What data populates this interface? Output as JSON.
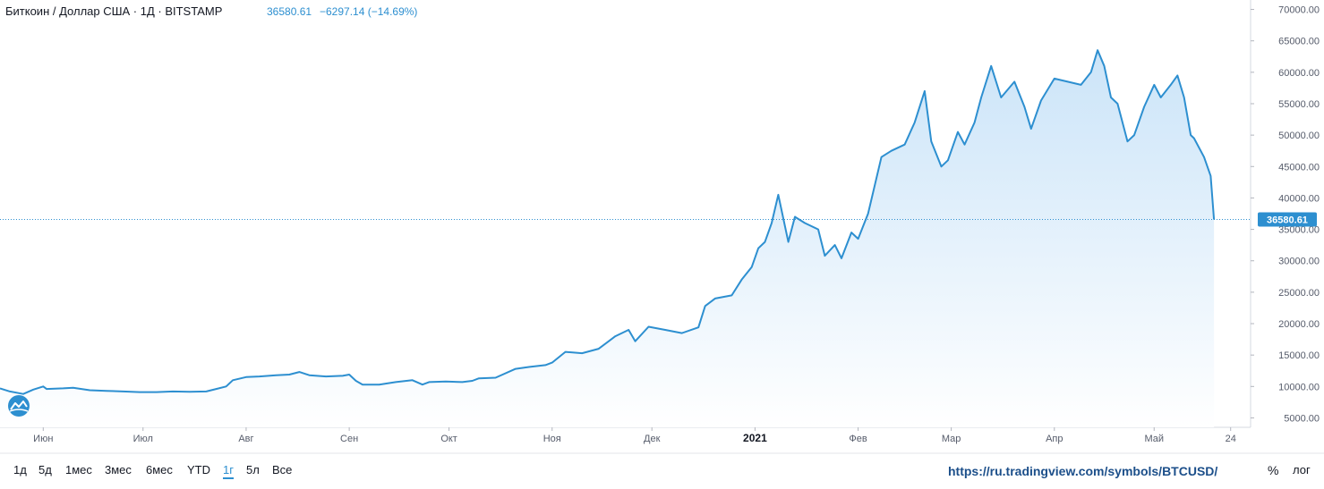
{
  "header": {
    "title": "Биткоин / Доллар США · 1Д · BITSTAMP",
    "last_price": "36580.61",
    "change": "−6297.14 (−14.69%)"
  },
  "ranges": [
    {
      "label": "1д",
      "active": false
    },
    {
      "label": "5д",
      "active": false
    },
    {
      "label": "1мес",
      "active": false
    },
    {
      "label": "3мес",
      "active": false
    },
    {
      "label": "6мес",
      "active": false
    },
    {
      "label": "YTD",
      "active": false
    },
    {
      "label": "1г",
      "active": true
    },
    {
      "label": "5л",
      "active": false
    },
    {
      "label": "Все",
      "active": false
    }
  ],
  "source_url": "https://ru.tradingview.com/symbols/BTCUSD/",
  "scale_toggles": {
    "percent": "%",
    "log": "лог"
  },
  "colors": {
    "line": "#2d8fd0",
    "fill_top": "#c9e3f8",
    "fill_bottom": "#ffffff",
    "last_box": "#2d8fd0"
  },
  "chart_data": {
    "type": "area",
    "title": "Биткоин / Доллар США · 1Д · BITSTAMP",
    "ylim": [
      3500,
      71500
    ],
    "grid": false,
    "y_ticks": [
      {
        "value": 5000,
        "label": "5000.00"
      },
      {
        "value": 10000,
        "label": "10000.00"
      },
      {
        "value": 15000,
        "label": "15000.00"
      },
      {
        "value": 20000,
        "label": "20000.00"
      },
      {
        "value": 25000,
        "label": "25000.00"
      },
      {
        "value": 30000,
        "label": "30000.00"
      },
      {
        "value": 35000,
        "label": "35000.00"
      },
      {
        "value": 40000,
        "label": "40000.00"
      },
      {
        "value": 45000,
        "label": "45000.00"
      },
      {
        "value": 50000,
        "label": "50000.00"
      },
      {
        "value": 55000,
        "label": "55000.00"
      },
      {
        "value": 60000,
        "label": "60000.00"
      },
      {
        "value": 65000,
        "label": "65000.00"
      },
      {
        "value": 70000,
        "label": "70000.00"
      }
    ],
    "x_ticks": [
      {
        "date": "2020-06-01",
        "label": "Июн",
        "bold": false
      },
      {
        "date": "2020-07-01",
        "label": "Июл",
        "bold": false
      },
      {
        "date": "2020-08-01",
        "label": "Авг",
        "bold": false
      },
      {
        "date": "2020-09-01",
        "label": "Сен",
        "bold": false
      },
      {
        "date": "2020-10-01",
        "label": "Окт",
        "bold": false
      },
      {
        "date": "2020-11-01",
        "label": "Ноя",
        "bold": false
      },
      {
        "date": "2020-12-01",
        "label": "Дек",
        "bold": false
      },
      {
        "date": "2021-01-01",
        "label": "2021",
        "bold": true
      },
      {
        "date": "2021-02-01",
        "label": "Фев",
        "bold": false
      },
      {
        "date": "2021-03-01",
        "label": "Мар",
        "bold": false
      },
      {
        "date": "2021-04-01",
        "label": "Апр",
        "bold": false
      },
      {
        "date": "2021-05-01",
        "label": "Май",
        "bold": false
      },
      {
        "date": "2021-05-24",
        "label": "24",
        "bold": false
      }
    ],
    "last_value": {
      "value": 36580.61,
      "label": "36580.61"
    },
    "series": [
      {
        "x": [
          "2020-05-19",
          "2020-05-22",
          "2020-05-26",
          "2020-05-29",
          "2020-06-01",
          "2020-06-02",
          "2020-06-07",
          "2020-06-10",
          "2020-06-15",
          "2020-06-20",
          "2020-06-25",
          "2020-06-30",
          "2020-07-05",
          "2020-07-10",
          "2020-07-15",
          "2020-07-20",
          "2020-07-23",
          "2020-07-26",
          "2020-07-28",
          "2020-08-01",
          "2020-08-05",
          "2020-08-10",
          "2020-08-14",
          "2020-08-17",
          "2020-08-20",
          "2020-08-25",
          "2020-08-30",
          "2020-09-01",
          "2020-09-03",
          "2020-09-05",
          "2020-09-10",
          "2020-09-15",
          "2020-09-20",
          "2020-09-23",
          "2020-09-25",
          "2020-09-30",
          "2020-10-05",
          "2020-10-08",
          "2020-10-10",
          "2020-10-15",
          "2020-10-21",
          "2020-10-25",
          "2020-10-30",
          "2020-11-01",
          "2020-11-05",
          "2020-11-10",
          "2020-11-15",
          "2020-11-20",
          "2020-11-24",
          "2020-11-26",
          "2020-11-30",
          "2020-12-05",
          "2020-12-10",
          "2020-12-15",
          "2020-12-17",
          "2020-12-20",
          "2020-12-25",
          "2020-12-28",
          "2020-12-31",
          "2021-01-02",
          "2021-01-04",
          "2021-01-06",
          "2021-01-08",
          "2021-01-11",
          "2021-01-13",
          "2021-01-16",
          "2021-01-20",
          "2021-01-22",
          "2021-01-25",
          "2021-01-27",
          "2021-01-30",
          "2021-02-01",
          "2021-02-04",
          "2021-02-08",
          "2021-02-11",
          "2021-02-15",
          "2021-02-18",
          "2021-02-21",
          "2021-02-23",
          "2021-02-26",
          "2021-02-28",
          "2021-03-03",
          "2021-03-05",
          "2021-03-08",
          "2021-03-10",
          "2021-03-13",
          "2021-03-16",
          "2021-03-20",
          "2021-03-23",
          "2021-03-25",
          "2021-03-28",
          "2021-04-01",
          "2021-04-05",
          "2021-04-09",
          "2021-04-12",
          "2021-04-14",
          "2021-04-16",
          "2021-04-18",
          "2021-04-20",
          "2021-04-23",
          "2021-04-25",
          "2021-04-28",
          "2021-05-01",
          "2021-05-03",
          "2021-05-06",
          "2021-05-08",
          "2021-05-10",
          "2021-05-12",
          "2021-05-13",
          "2021-05-16",
          "2021-05-18",
          "2021-05-19"
        ],
        "values": [
          9700,
          9200,
          8800,
          9500,
          10000,
          9600,
          9700,
          9800,
          9400,
          9300,
          9200,
          9100,
          9100,
          9200,
          9150,
          9200,
          9600,
          10000,
          11000,
          11500,
          11600,
          11800,
          11900,
          12300,
          11800,
          11600,
          11700,
          11900,
          10900,
          10300,
          10300,
          10700,
          11000,
          10300,
          10700,
          10800,
          10700,
          10900,
          11300,
          11400,
          12800,
          13100,
          13400,
          13800,
          15500,
          15300,
          16000,
          18000,
          19000,
          17200,
          19500,
          19000,
          18500,
          19400,
          22800,
          24000,
          24500,
          27000,
          29000,
          32000,
          33000,
          36000,
          40500,
          33000,
          37000,
          36000,
          35000,
          30800,
          32500,
          30400,
          34500,
          33500,
          37500,
          46500,
          47500,
          48500,
          52000,
          57000,
          49000,
          45000,
          46000,
          50500,
          48500,
          52000,
          56000,
          61000,
          56000,
          58500,
          54500,
          51000,
          55500,
          59000,
          58500,
          58000,
          60000,
          63500,
          61000,
          56000,
          55000,
          49000,
          50000,
          54500,
          58000,
          56000,
          58000,
          59500,
          56000,
          50000,
          49500,
          46500,
          43500,
          36580.61
        ]
      }
    ]
  }
}
